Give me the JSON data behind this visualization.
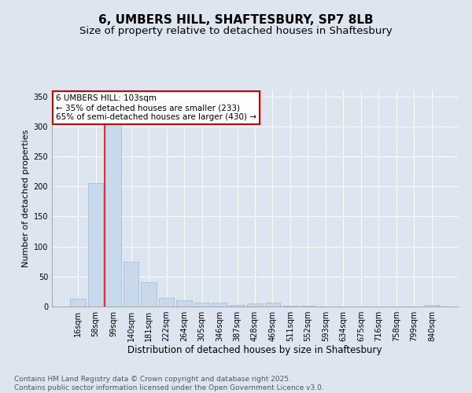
{
  "title": "6, UMBERS HILL, SHAFTESBURY, SP7 8LB",
  "subtitle": "Size of property relative to detached houses in Shaftesbury",
  "xlabel": "Distribution of detached houses by size in Shaftesbury",
  "ylabel": "Number of detached properties",
  "bar_labels": [
    "16sqm",
    "58sqm",
    "99sqm",
    "140sqm",
    "181sqm",
    "222sqm",
    "264sqm",
    "305sqm",
    "346sqm",
    "387sqm",
    "428sqm",
    "469sqm",
    "511sqm",
    "552sqm",
    "593sqm",
    "634sqm",
    "675sqm",
    "716sqm",
    "758sqm",
    "799sqm",
    "840sqm"
  ],
  "bar_values": [
    13,
    205,
    310,
    75,
    40,
    14,
    10,
    7,
    6,
    3,
    5,
    6,
    1,
    1,
    0,
    0,
    0,
    0,
    0,
    0,
    3
  ],
  "bar_color": "#c9d9ec",
  "bar_edge_color": "#a0b8d8",
  "red_line_index": 2,
  "annotation_text": "6 UMBERS HILL: 103sqm\n← 35% of detached houses are smaller (233)\n65% of semi-detached houses are larger (430) →",
  "annotation_box_facecolor": "#ffffff",
  "annotation_box_edgecolor": "#cc0000",
  "ylim": [
    0,
    360
  ],
  "yticks": [
    0,
    50,
    100,
    150,
    200,
    250,
    300,
    350
  ],
  "bg_color": "#dde6f0",
  "plot_bg_color": "#dde6f0",
  "grid_color": "#ffffff",
  "footer": "Contains HM Land Registry data © Crown copyright and database right 2025.\nContains public sector information licensed under the Open Government Licence v3.0.",
  "title_fontsize": 11,
  "subtitle_fontsize": 9.5,
  "xlabel_fontsize": 8.5,
  "ylabel_fontsize": 8,
  "tick_fontsize": 7,
  "annotation_fontsize": 7.5,
  "footer_fontsize": 6.5
}
